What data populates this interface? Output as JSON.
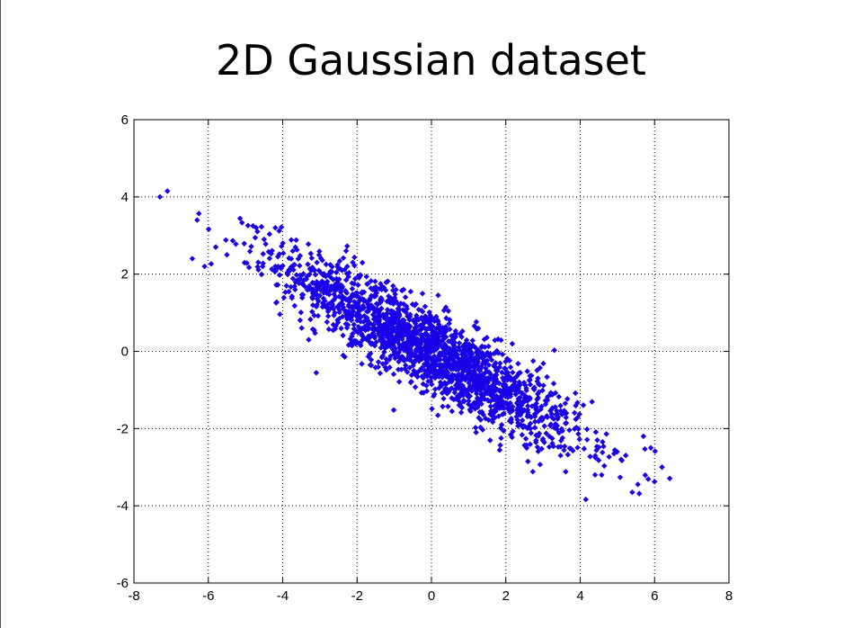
{
  "page": {
    "title": "2D Gaussian dataset"
  },
  "chart_data": {
    "type": "scatter",
    "title": "2D Gaussian dataset",
    "xlabel": "",
    "ylabel": "",
    "xlim": [
      -8,
      8
    ],
    "ylim": [
      -6,
      6
    ],
    "xticks": [
      "-8",
      "-6",
      "-4",
      "-2",
      "0",
      "2",
      "4",
      "6",
      "8"
    ],
    "yticks": [
      "-6",
      "-4",
      "-2",
      "0",
      "2",
      "4",
      "6"
    ],
    "grid": true,
    "grid_style": "dotted",
    "legend": "none",
    "marker_color": "#1a00e6",
    "distribution": {
      "mean": [
        0,
        0
      ],
      "covariance": [
        [
          4.0,
          -2.2
        ],
        [
          -2.2,
          1.5
        ]
      ],
      "n_points": 2000
    },
    "outliers": [
      {
        "x": -7.3,
        "y": 4.0
      },
      {
        "x": -7.1,
        "y": 4.15
      },
      {
        "x": -6.3,
        "y": 3.4
      },
      {
        "x": -6.1,
        "y": 2.2
      },
      {
        "x": -5.8,
        "y": 2.7
      },
      {
        "x": -5.5,
        "y": 2.5
      },
      {
        "x": -4.5,
        "y": 2.9
      },
      {
        "x": -4.2,
        "y": 2.2
      },
      {
        "x": -3.3,
        "y": 0.3
      },
      {
        "x": 1.2,
        "y": -2.1
      },
      {
        "x": 5.4,
        "y": -3.65
      },
      {
        "x": 6.2,
        "y": -3.0
      },
      {
        "x": 5.9,
        "y": -2.5
      },
      {
        "x": 5.1,
        "y": -2.8
      },
      {
        "x": 4.4,
        "y": -3.2
      },
      {
        "x": 5.7,
        "y": -2.2
      }
    ]
  }
}
